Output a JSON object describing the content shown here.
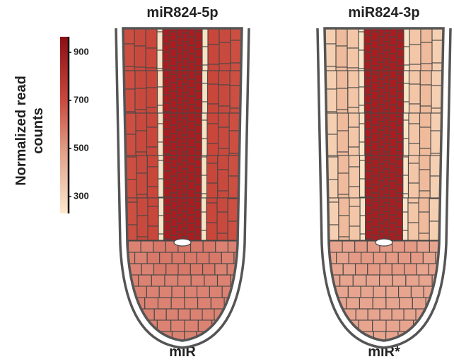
{
  "panels": [
    {
      "title": "miR824-5p",
      "caption": "miR"
    },
    {
      "title": "miR824-3p",
      "caption": "miR*"
    }
  ],
  "colorbar": {
    "label": [
      "Normalized read",
      "counts"
    ],
    "lim": [
      230,
      965
    ],
    "ticks": [
      300,
      500,
      700,
      900
    ]
  }
}
